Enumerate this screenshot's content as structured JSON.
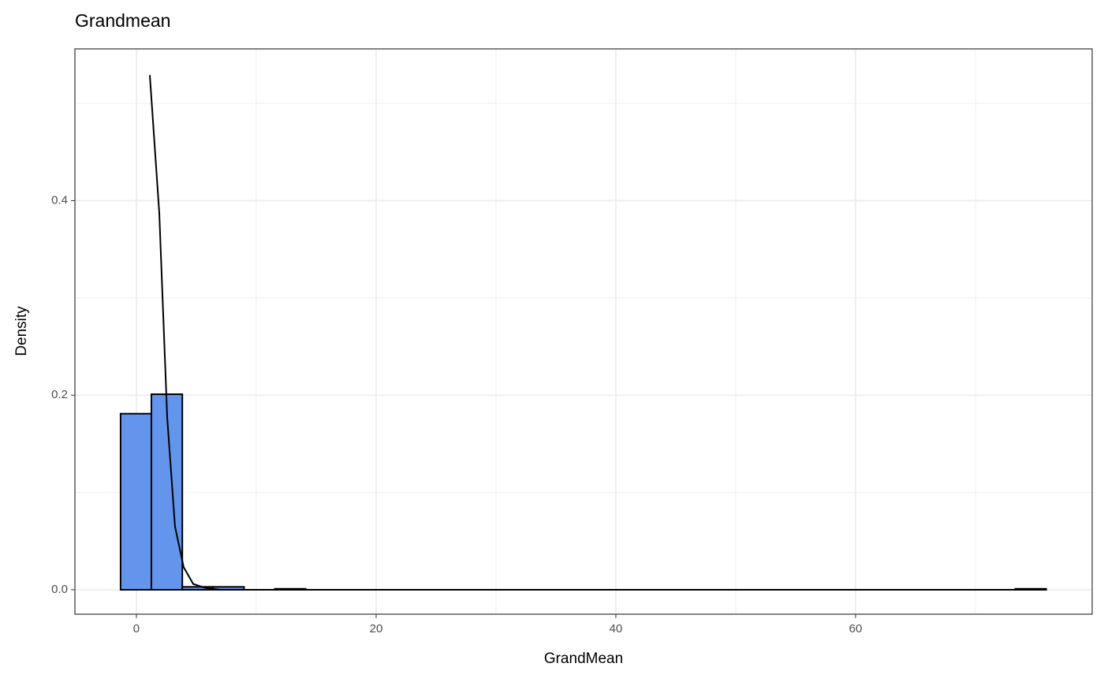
{
  "chart_data": {
    "type": "histogram",
    "title": "Grandmean",
    "x_label": "GrandMean",
    "y_label": "Density",
    "bins": [
      -1.32,
      1.25,
      3.83,
      6.4,
      8.98,
      11.55,
      14.12,
      16.7,
      19.27,
      21.85,
      24.42,
      26.99,
      29.57,
      32.14,
      34.72,
      37.29,
      39.86,
      42.44,
      45.01,
      47.59,
      50.16,
      52.73,
      55.31,
      57.88,
      60.46,
      63.03,
      65.6,
      68.18,
      70.75,
      73.33,
      75.9
    ],
    "values": [
      0.181,
      0.201,
      0.003,
      0.003,
      0,
      0.001,
      0,
      0,
      0,
      0,
      0,
      0,
      0,
      0,
      0,
      0,
      0,
      0,
      0,
      0,
      0,
      0,
      0,
      0,
      0,
      0,
      0,
      0,
      0,
      0.001
    ],
    "color": "#6495ed",
    "density_line": {
      "x": [
        1.12,
        1.91,
        2.57,
        3.22,
        3.95,
        4.74,
        5.72,
        7,
        75.9
      ],
      "y": [
        0.529,
        0.387,
        0.177,
        0.065,
        0.023,
        0.006,
        0.002,
        0,
        0
      ]
    },
    "xlim": [
      -5.13,
      79.74
    ],
    "ylim": [
      -0.0251,
      0.556
    ],
    "xticks": [
      0,
      20,
      40,
      60
    ],
    "yticks": [
      {
        "value": 0,
        "label": "0.0"
      },
      0.2,
      0.4
    ],
    "x_minor_breaks": [
      10,
      30,
      50,
      70
    ],
    "y_minor_breaks": [
      0.1,
      0.3,
      0.5
    ],
    "grid": true
  }
}
